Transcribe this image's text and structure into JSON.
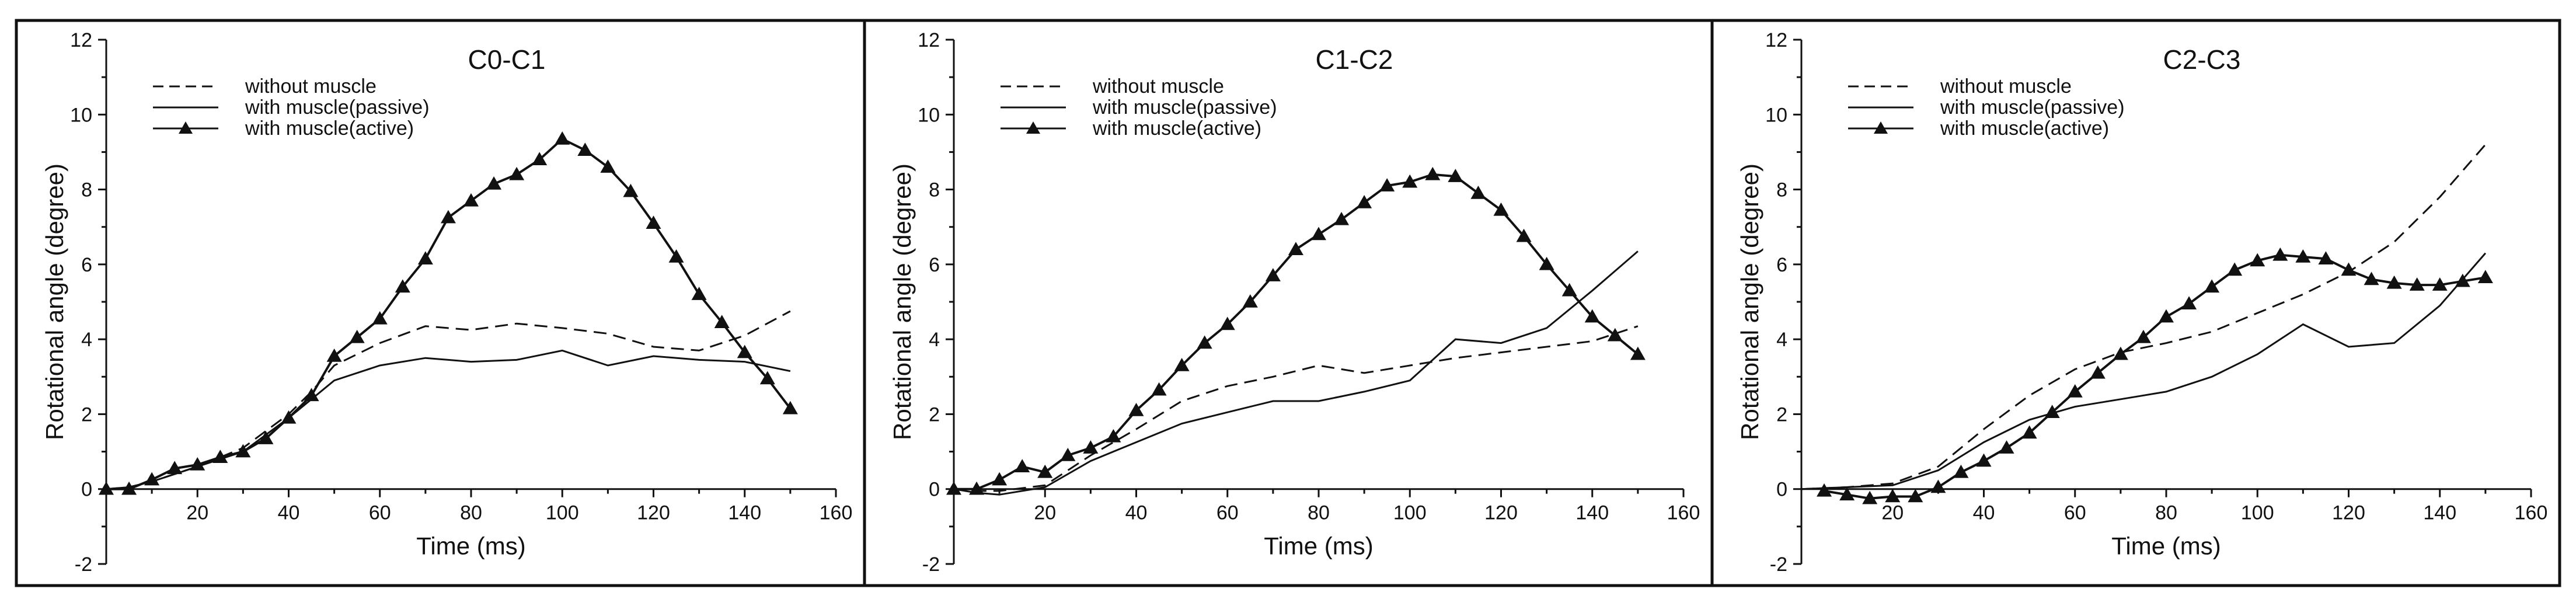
{
  "chart_data": [
    {
      "type": "line",
      "title": "C0-C1",
      "xlabel": "Time (ms)",
      "ylabel": "Rotational angle  (degree)",
      "xlim": [
        0,
        160
      ],
      "ylim": [
        -2,
        12
      ],
      "xticks": [
        20,
        40,
        60,
        80,
        100,
        120,
        140,
        160
      ],
      "yticks": [
        -2,
        0,
        2,
        4,
        6,
        8,
        10,
        12
      ],
      "legend_position": "top-left",
      "grid": false,
      "series": [
        {
          "name": "without muscle",
          "style": "dashed",
          "x": [
            0,
            5,
            10,
            20,
            30,
            40,
            45,
            50,
            60,
            70,
            80,
            90,
            100,
            110,
            120,
            130,
            140,
            150
          ],
          "y": [
            0,
            0.05,
            0.2,
            0.6,
            1.1,
            2.0,
            2.6,
            3.3,
            3.9,
            4.35,
            4.25,
            4.42,
            4.3,
            4.15,
            3.8,
            3.7,
            4.1,
            4.75
          ]
        },
        {
          "name": "with muscle(passive)",
          "style": "solid",
          "x": [
            0,
            5,
            10,
            20,
            30,
            40,
            45,
            50,
            60,
            70,
            80,
            90,
            100,
            110,
            120,
            130,
            140,
            150
          ],
          "y": [
            0,
            0.05,
            0.2,
            0.6,
            1.0,
            1.9,
            2.4,
            2.9,
            3.3,
            3.5,
            3.4,
            3.45,
            3.7,
            3.3,
            3.55,
            3.45,
            3.4,
            3.15
          ]
        },
        {
          "name": "with muscle(active)",
          "style": "solid-triangle",
          "x": [
            0,
            5,
            10,
            15,
            20,
            25,
            30,
            35,
            40,
            45,
            50,
            55,
            60,
            65,
            70,
            75,
            80,
            85,
            90,
            95,
            100,
            105,
            110,
            115,
            120,
            125,
            130,
            135,
            140,
            145,
            150
          ],
          "y": [
            0,
            0,
            0.25,
            0.55,
            0.65,
            0.85,
            1.0,
            1.35,
            1.9,
            2.5,
            3.55,
            4.05,
            4.55,
            5.4,
            6.15,
            7.25,
            7.7,
            8.15,
            8.4,
            8.8,
            9.35,
            9.05,
            8.6,
            7.95,
            7.1,
            6.2,
            5.2,
            4.45,
            3.65,
            2.95,
            2.15
          ]
        }
      ]
    },
    {
      "type": "line",
      "title": "C1-C2",
      "xlabel": "Time (ms)",
      "ylabel": "Rotational angle  (degree)",
      "xlim": [
        0,
        160
      ],
      "ylim": [
        -2,
        12
      ],
      "xticks": [
        20,
        40,
        60,
        80,
        100,
        120,
        140,
        160
      ],
      "yticks": [
        -2,
        0,
        2,
        4,
        6,
        8,
        10,
        12
      ],
      "legend_position": "top-left",
      "grid": false,
      "series": [
        {
          "name": "without muscle",
          "style": "dashed",
          "x": [
            0,
            5,
            10,
            20,
            30,
            40,
            50,
            60,
            70,
            80,
            90,
            100,
            110,
            120,
            130,
            140,
            150
          ],
          "y": [
            0,
            -0.05,
            -0.05,
            0.1,
            0.9,
            1.6,
            2.35,
            2.75,
            3.0,
            3.3,
            3.1,
            3.3,
            3.5,
            3.65,
            3.8,
            3.95,
            4.35
          ]
        },
        {
          "name": "with muscle(passive)",
          "style": "solid",
          "x": [
            0,
            5,
            10,
            20,
            30,
            40,
            50,
            60,
            70,
            80,
            90,
            100,
            110,
            120,
            130,
            140,
            150
          ],
          "y": [
            0,
            -0.1,
            -0.15,
            0.05,
            0.75,
            1.25,
            1.75,
            2.05,
            2.35,
            2.35,
            2.6,
            2.9,
            4.0,
            3.9,
            4.3,
            5.3,
            6.35
          ]
        },
        {
          "name": "with muscle(active)",
          "style": "solid-triangle",
          "x": [
            0,
            5,
            10,
            15,
            20,
            25,
            30,
            35,
            40,
            45,
            50,
            55,
            60,
            65,
            70,
            75,
            80,
            85,
            90,
            95,
            100,
            105,
            110,
            115,
            120,
            125,
            130,
            135,
            140,
            145,
            150
          ],
          "y": [
            0,
            0,
            0.25,
            0.6,
            0.45,
            0.9,
            1.1,
            1.4,
            2.1,
            2.65,
            3.3,
            3.9,
            4.4,
            5.0,
            5.7,
            6.4,
            6.8,
            7.2,
            7.65,
            8.1,
            8.2,
            8.4,
            8.35,
            7.9,
            7.45,
            6.75,
            6.0,
            5.3,
            4.6,
            4.1,
            3.6
          ]
        }
      ]
    },
    {
      "type": "line",
      "title": "C2-C3",
      "xlabel": "Time (ms)",
      "ylabel": "Rotational angle  (degree)",
      "xlim": [
        0,
        160
      ],
      "ylim": [
        -2,
        12
      ],
      "xticks": [
        20,
        40,
        60,
        80,
        100,
        120,
        140,
        160
      ],
      "yticks": [
        -2,
        0,
        2,
        4,
        6,
        8,
        10,
        12
      ],
      "legend_position": "top-left",
      "grid": false,
      "series": [
        {
          "name": "without muscle",
          "style": "dashed",
          "x": [
            0,
            10,
            20,
            30,
            40,
            50,
            60,
            70,
            80,
            90,
            100,
            110,
            120,
            130,
            140,
            150
          ],
          "y": [
            0,
            0.05,
            0.15,
            0.6,
            1.6,
            2.5,
            3.2,
            3.65,
            3.9,
            4.2,
            4.7,
            5.2,
            5.8,
            6.6,
            7.8,
            9.2
          ]
        },
        {
          "name": "with muscle(passive)",
          "style": "solid",
          "x": [
            0,
            10,
            20,
            30,
            40,
            50,
            60,
            70,
            80,
            90,
            100,
            110,
            120,
            130,
            140,
            150
          ],
          "y": [
            0,
            0.05,
            0.1,
            0.5,
            1.25,
            1.85,
            2.2,
            2.4,
            2.6,
            3.0,
            3.6,
            4.4,
            3.8,
            3.9,
            4.9,
            6.3
          ]
        },
        {
          "name": "with muscle(active)",
          "style": "solid-triangle",
          "x": [
            5,
            10,
            15,
            20,
            25,
            30,
            35,
            40,
            45,
            50,
            55,
            60,
            65,
            70,
            75,
            80,
            85,
            90,
            95,
            100,
            105,
            110,
            115,
            120,
            125,
            130,
            135,
            140,
            145,
            150
          ],
          "y": [
            -0.05,
            -0.15,
            -0.25,
            -0.2,
            -0.2,
            0.05,
            0.45,
            0.75,
            1.1,
            1.5,
            2.05,
            2.6,
            3.1,
            3.6,
            4.05,
            4.6,
            4.95,
            5.4,
            5.85,
            6.1,
            6.25,
            6.2,
            6.15,
            5.85,
            5.6,
            5.5,
            5.45,
            5.45,
            5.55,
            5.65
          ]
        }
      ]
    }
  ]
}
